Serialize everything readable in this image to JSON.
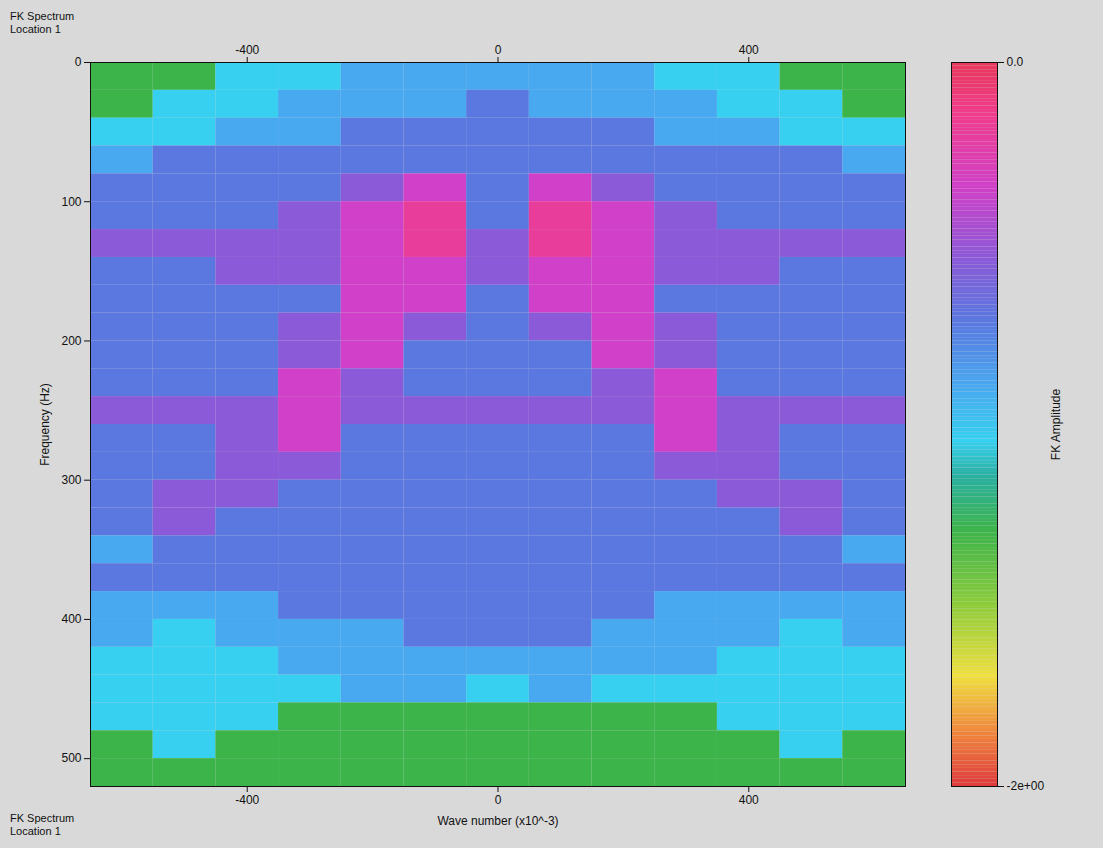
{
  "chart_data": {
    "type": "heatmap",
    "title": "FK Spectrum",
    "subtitle": "Location 1",
    "x_label": "Wave number (x10^-3)",
    "y_label": "Frequency (Hz)",
    "xlim": [
      -650,
      650
    ],
    "ylim": [
      0,
      520
    ],
    "xticks": [
      -400,
      0,
      400
    ],
    "yticks": [
      0,
      100,
      200,
      300,
      400,
      500
    ],
    "grid": false,
    "x_bins": [
      -650,
      -550,
      -450,
      -350,
      -250,
      -150,
      -50,
      50,
      150,
      250,
      350,
      450,
      550,
      650
    ],
    "y_bins": [
      0,
      20,
      40,
      60,
      80,
      100,
      120,
      140,
      160,
      180,
      200,
      220,
      240,
      260,
      280,
      300,
      320,
      340,
      360,
      380,
      400,
      420,
      440,
      460,
      480,
      500,
      520
    ],
    "values": [
      [
        -1.3,
        -1.3,
        -1.05,
        -1.05,
        -0.9,
        -0.9,
        -0.9,
        -0.9,
        -0.9,
        -1.05,
        -1.05,
        -1.3,
        -1.3
      ],
      [
        -1.3,
        -1.05,
        -1.05,
        -0.9,
        -0.9,
        -0.9,
        -0.72,
        -0.9,
        -0.9,
        -0.9,
        -1.05,
        -1.05,
        -1.3
      ],
      [
        -1.05,
        -1.05,
        -0.9,
        -0.9,
        -0.72,
        -0.72,
        -0.72,
        -0.72,
        -0.72,
        -0.9,
        -0.9,
        -1.05,
        -1.05
      ],
      [
        -0.9,
        -0.72,
        -0.72,
        -0.72,
        -0.72,
        -0.72,
        -0.72,
        -0.72,
        -0.72,
        -0.72,
        -0.72,
        -0.72,
        -0.9
      ],
      [
        -0.72,
        -0.72,
        -0.72,
        -0.72,
        -0.55,
        -0.35,
        -0.72,
        -0.35,
        -0.55,
        -0.72,
        -0.72,
        -0.72,
        -0.72
      ],
      [
        -0.72,
        -0.72,
        -0.72,
        -0.55,
        -0.35,
        -0.2,
        -0.72,
        -0.2,
        -0.35,
        -0.55,
        -0.72,
        -0.72,
        -0.72
      ],
      [
        -0.55,
        -0.55,
        -0.55,
        -0.55,
        -0.35,
        -0.2,
        -0.55,
        -0.2,
        -0.35,
        -0.55,
        -0.55,
        -0.55,
        -0.55
      ],
      [
        -0.72,
        -0.72,
        -0.55,
        -0.55,
        -0.35,
        -0.35,
        -0.55,
        -0.35,
        -0.35,
        -0.55,
        -0.55,
        -0.72,
        -0.72
      ],
      [
        -0.72,
        -0.72,
        -0.72,
        -0.72,
        -0.35,
        -0.35,
        -0.72,
        -0.35,
        -0.35,
        -0.72,
        -0.72,
        -0.72,
        -0.72
      ],
      [
        -0.72,
        -0.72,
        -0.72,
        -0.55,
        -0.35,
        -0.55,
        -0.72,
        -0.55,
        -0.35,
        -0.55,
        -0.72,
        -0.72,
        -0.72
      ],
      [
        -0.72,
        -0.72,
        -0.72,
        -0.55,
        -0.35,
        -0.72,
        -0.72,
        -0.72,
        -0.35,
        -0.55,
        -0.72,
        -0.72,
        -0.72
      ],
      [
        -0.72,
        -0.72,
        -0.72,
        -0.35,
        -0.55,
        -0.72,
        -0.72,
        -0.72,
        -0.55,
        -0.35,
        -0.72,
        -0.72,
        -0.72
      ],
      [
        -0.55,
        -0.55,
        -0.55,
        -0.35,
        -0.55,
        -0.55,
        -0.55,
        -0.55,
        -0.55,
        -0.35,
        -0.55,
        -0.55,
        -0.55
      ],
      [
        -0.72,
        -0.72,
        -0.55,
        -0.35,
        -0.72,
        -0.72,
        -0.72,
        -0.72,
        -0.72,
        -0.35,
        -0.55,
        -0.72,
        -0.72
      ],
      [
        -0.72,
        -0.72,
        -0.55,
        -0.55,
        -0.72,
        -0.72,
        -0.72,
        -0.72,
        -0.72,
        -0.55,
        -0.55,
        -0.72,
        -0.72
      ],
      [
        -0.72,
        -0.55,
        -0.55,
        -0.72,
        -0.72,
        -0.72,
        -0.72,
        -0.72,
        -0.72,
        -0.72,
        -0.55,
        -0.55,
        -0.72
      ],
      [
        -0.72,
        -0.55,
        -0.72,
        -0.72,
        -0.72,
        -0.72,
        -0.72,
        -0.72,
        -0.72,
        -0.72,
        -0.72,
        -0.55,
        -0.72
      ],
      [
        -0.9,
        -0.72,
        -0.72,
        -0.72,
        -0.72,
        -0.72,
        -0.72,
        -0.72,
        -0.72,
        -0.72,
        -0.72,
        -0.72,
        -0.9
      ],
      [
        -0.72,
        -0.72,
        -0.72,
        -0.72,
        -0.72,
        -0.72,
        -0.72,
        -0.72,
        -0.72,
        -0.72,
        -0.72,
        -0.72,
        -0.72
      ],
      [
        -0.9,
        -0.9,
        -0.9,
        -0.72,
        -0.72,
        -0.72,
        -0.72,
        -0.72,
        -0.72,
        -0.9,
        -0.9,
        -0.9,
        -0.9
      ],
      [
        -0.9,
        -1.05,
        -0.9,
        -0.9,
        -0.9,
        -0.72,
        -0.72,
        -0.72,
        -0.9,
        -0.9,
        -0.9,
        -1.05,
        -0.9
      ],
      [
        -1.05,
        -1.05,
        -1.05,
        -0.9,
        -0.9,
        -0.9,
        -0.9,
        -0.9,
        -0.9,
        -0.9,
        -1.05,
        -1.05,
        -1.05
      ],
      [
        -1.05,
        -1.05,
        -1.05,
        -1.05,
        -0.9,
        -0.9,
        -1.05,
        -0.9,
        -1.05,
        -1.05,
        -1.05,
        -1.05,
        -1.05
      ],
      [
        -1.05,
        -1.05,
        -1.05,
        -1.3,
        -1.3,
        -1.3,
        -1.3,
        -1.3,
        -1.3,
        -1.3,
        -1.05,
        -1.05,
        -1.05
      ],
      [
        -1.3,
        -1.05,
        -1.3,
        -1.3,
        -1.3,
        -1.3,
        -1.3,
        -1.3,
        -1.3,
        -1.3,
        -1.3,
        -1.05,
        -1.3
      ],
      [
        -1.3,
        -1.3,
        -1.3,
        -1.3,
        -1.3,
        -1.3,
        -1.3,
        -1.3,
        -1.3,
        -1.3,
        -1.3,
        -1.3,
        -1.3
      ]
    ],
    "colorbar": {
      "label": "FK Amplitude",
      "range": [
        -2,
        0
      ],
      "ticks": [
        {
          "value": -2,
          "label": "-2e+00"
        },
        {
          "value": 0,
          "label": "0.0"
        }
      ]
    }
  }
}
